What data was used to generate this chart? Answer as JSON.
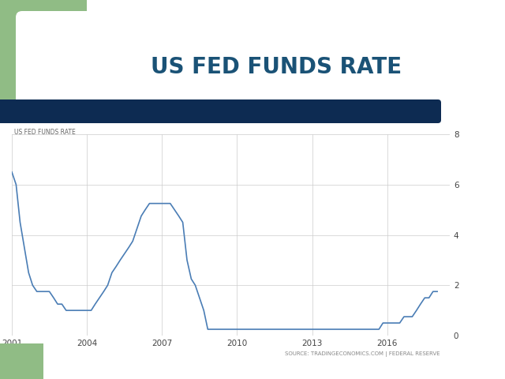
{
  "title": "US FED FUNDS RATE",
  "chart_label": "US FED FUNDS RATE",
  "source_text": "SOURCE: TRADINGECONOMICS.COM | FEDERAL RESERVE",
  "title_color": "#1a5276",
  "bar_color": "#0d2b52",
  "line_color": "#4a7db5",
  "bg_color": "#ffffff",
  "chart_bg": "#ffffff",
  "green_color": "#90bc85",
  "ylim": [
    0,
    8
  ],
  "yticks": [
    0,
    2,
    4,
    6,
    8
  ],
  "x_data": [
    2001.0,
    2001.17,
    2001.33,
    2001.5,
    2001.67,
    2001.83,
    2002.0,
    2002.17,
    2002.33,
    2002.5,
    2002.67,
    2002.83,
    2003.0,
    2003.17,
    2003.33,
    2003.5,
    2003.67,
    2003.83,
    2004.0,
    2004.17,
    2004.33,
    2004.5,
    2004.67,
    2004.83,
    2005.0,
    2005.17,
    2005.33,
    2005.5,
    2005.67,
    2005.83,
    2006.0,
    2006.17,
    2006.33,
    2006.5,
    2006.67,
    2006.83,
    2007.0,
    2007.17,
    2007.33,
    2007.5,
    2007.67,
    2007.83,
    2008.0,
    2008.17,
    2008.33,
    2008.5,
    2008.67,
    2008.83,
    2009.0,
    2009.17,
    2009.33,
    2009.5,
    2009.67,
    2009.83,
    2010.0,
    2010.17,
    2010.33,
    2010.5,
    2010.67,
    2010.83,
    2011.0,
    2011.17,
    2011.33,
    2011.5,
    2011.67,
    2011.83,
    2012.0,
    2012.17,
    2012.33,
    2012.5,
    2012.67,
    2012.83,
    2013.0,
    2013.17,
    2013.33,
    2013.5,
    2013.67,
    2013.83,
    2014.0,
    2014.17,
    2014.33,
    2014.5,
    2014.67,
    2014.83,
    2015.0,
    2015.17,
    2015.33,
    2015.5,
    2015.67,
    2015.83,
    2016.0,
    2016.17,
    2016.33,
    2016.5,
    2016.67,
    2016.83,
    2017.0,
    2017.17,
    2017.33,
    2017.5,
    2017.67,
    2017.83,
    2018.0
  ],
  "y_data": [
    6.5,
    6.0,
    4.5,
    3.5,
    2.5,
    2.0,
    1.75,
    1.75,
    1.75,
    1.75,
    1.5,
    1.25,
    1.25,
    1.0,
    1.0,
    1.0,
    1.0,
    1.0,
    1.0,
    1.0,
    1.25,
    1.5,
    1.75,
    2.0,
    2.5,
    2.75,
    3.0,
    3.25,
    3.5,
    3.75,
    4.25,
    4.75,
    5.0,
    5.25,
    5.25,
    5.25,
    5.25,
    5.25,
    5.25,
    5.0,
    4.75,
    4.5,
    3.0,
    2.25,
    2.0,
    1.5,
    1.0,
    0.25,
    0.25,
    0.25,
    0.25,
    0.25,
    0.25,
    0.25,
    0.25,
    0.25,
    0.25,
    0.25,
    0.25,
    0.25,
    0.25,
    0.25,
    0.25,
    0.25,
    0.25,
    0.25,
    0.25,
    0.25,
    0.25,
    0.25,
    0.25,
    0.25,
    0.25,
    0.25,
    0.25,
    0.25,
    0.25,
    0.25,
    0.25,
    0.25,
    0.25,
    0.25,
    0.25,
    0.25,
    0.25,
    0.25,
    0.25,
    0.25,
    0.25,
    0.5,
    0.5,
    0.5,
    0.5,
    0.5,
    0.75,
    0.75,
    0.75,
    1.0,
    1.25,
    1.5,
    1.5,
    1.75,
    1.75
  ],
  "xticks": [
    2001,
    2004,
    2007,
    2010,
    2013,
    2016
  ],
  "xlim": [
    2001,
    2018.5
  ]
}
